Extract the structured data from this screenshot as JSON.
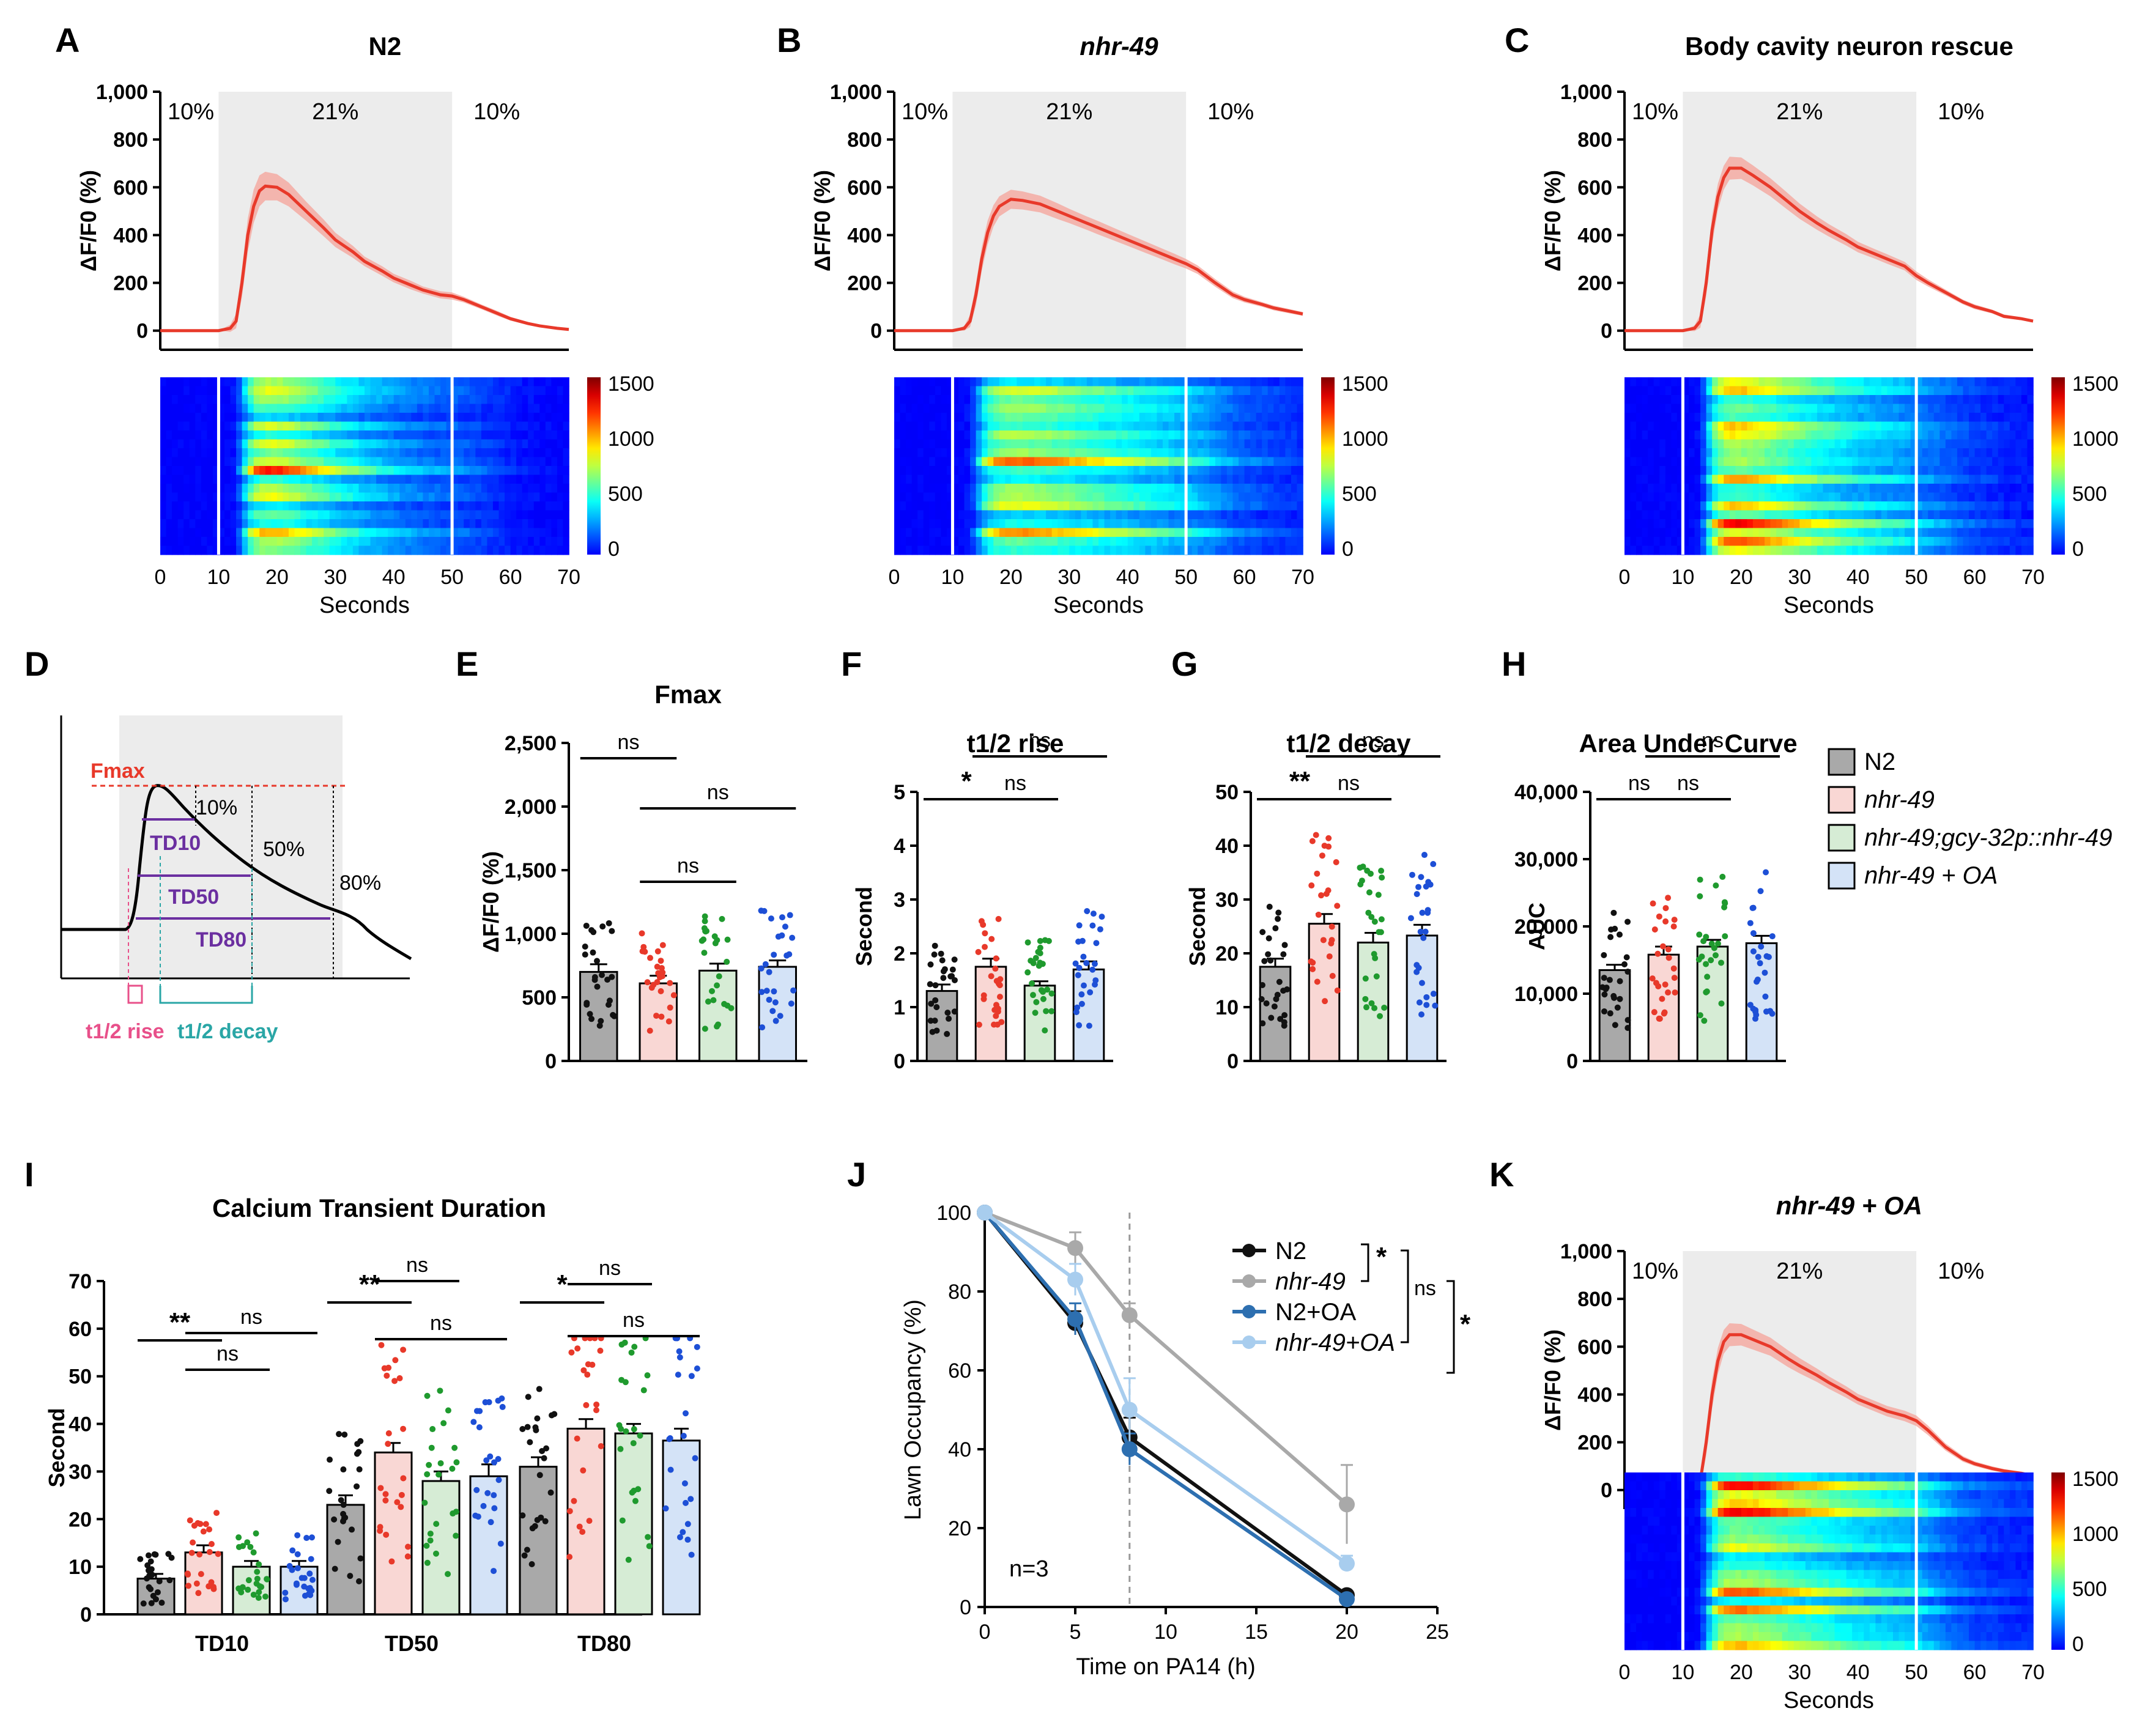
{
  "colors": {
    "n2": "#888888",
    "nhr49": "#f26b5b",
    "rescue": "#2e9e3e",
    "oa": "#2d6fd6",
    "n2_fill": "#a9a9a9",
    "nhr49_fill": "#f9d7d4",
    "rescue_fill": "#d6ecd5",
    "oa_fill": "#d4e3f7",
    "trace": "#e8392a",
    "shade": "#ececec"
  },
  "legend": {
    "items": [
      {
        "label": "N2",
        "key": "n2"
      },
      {
        "label": "nhr-49",
        "key": "nhr49"
      },
      {
        "label": "nhr-49;gcy-32p::nhr-49",
        "key": "rescue"
      },
      {
        "label": "nhr-49 + OA",
        "key": "oa"
      }
    ]
  },
  "chart_data": [
    {
      "panel": "A",
      "type": "line",
      "title": "N2",
      "title_italic": false,
      "ylabel": "ΔF/F0 (%)",
      "xlabel": "Seconds",
      "yticks": [
        "1,000",
        "800",
        "600",
        "400",
        "200",
        "0"
      ],
      "ylim": [
        -80,
        1000
      ],
      "xlim": [
        0,
        70
      ],
      "xticks": [
        "0",
        "10",
        "20",
        "30",
        "40",
        "50",
        "60",
        "70"
      ],
      "regions": {
        "before": "10%",
        "during": "21%",
        "after": "10%"
      },
      "stimulus": [
        10,
        50
      ],
      "x": [
        0,
        5,
        10,
        12,
        13,
        14,
        15,
        16,
        17,
        18,
        20,
        22,
        25,
        28,
        30,
        33,
        35,
        38,
        40,
        43,
        45,
        48,
        50,
        52,
        55,
        58,
        60,
        63,
        65,
        68,
        70
      ],
      "y": [
        0,
        0,
        0,
        10,
        40,
        200,
        400,
        520,
        585,
        605,
        600,
        570,
        500,
        430,
        380,
        330,
        290,
        250,
        220,
        190,
        170,
        150,
        145,
        130,
        100,
        70,
        50,
        30,
        20,
        10,
        5
      ],
      "err": [
        0,
        0,
        0,
        15,
        30,
        60,
        70,
        70,
        65,
        60,
        55,
        50,
        40,
        35,
        30,
        25,
        20,
        20,
        18,
        18,
        15,
        15,
        15,
        12,
        10,
        10,
        8,
        6,
        6,
        5,
        5
      ],
      "heatmap": {
        "scale": [
          "1500",
          "1000",
          "500",
          "0"
        ],
        "rows": 20,
        "peak_rows": [
          5,
          10,
          17
        ]
      }
    },
    {
      "panel": "B",
      "type": "line",
      "title": "nhr-49",
      "title_italic": true,
      "ylabel": "ΔF/F0 (%)",
      "xlabel": "Seconds",
      "yticks": [
        "1,000",
        "800",
        "600",
        "400",
        "200",
        "0"
      ],
      "ylim": [
        -80,
        1000
      ],
      "xlim": [
        0,
        70
      ],
      "xticks": [
        "0",
        "10",
        "20",
        "30",
        "40",
        "50",
        "60",
        "70"
      ],
      "regions": {
        "before": "10%",
        "during": "21%",
        "after": "10%"
      },
      "stimulus": [
        10,
        50
      ],
      "x": [
        0,
        5,
        10,
        12,
        13,
        14,
        15,
        16,
        17,
        18,
        20,
        22,
        25,
        28,
        30,
        33,
        35,
        38,
        40,
        43,
        45,
        48,
        50,
        52,
        55,
        58,
        60,
        63,
        65,
        68,
        70
      ],
      "y": [
        0,
        0,
        0,
        10,
        40,
        150,
        300,
        410,
        480,
        520,
        550,
        545,
        530,
        500,
        480,
        450,
        430,
        400,
        380,
        350,
        330,
        300,
        280,
        255,
        200,
        150,
        130,
        110,
        95,
        80,
        70
      ],
      "err": [
        0,
        0,
        0,
        10,
        25,
        45,
        50,
        50,
        45,
        42,
        40,
        38,
        35,
        33,
        30,
        28,
        28,
        26,
        25,
        24,
        23,
        22,
        20,
        18,
        16,
        14,
        12,
        10,
        10,
        9,
        8
      ],
      "heatmap": {
        "scale": [
          "1500",
          "1000",
          "500",
          "0"
        ],
        "rows": 20,
        "peak_rows": [
          6,
          9,
          14,
          17
        ]
      }
    },
    {
      "panel": "C",
      "type": "line",
      "title": "Body cavity neuron rescue",
      "title_italic": false,
      "ylabel": "ΔF/F0 (%)",
      "xlabel": "Seconds",
      "yticks": [
        "1,000",
        "800",
        "600",
        "400",
        "200",
        "0"
      ],
      "ylim": [
        -80,
        1000
      ],
      "xlim": [
        0,
        70
      ],
      "xticks": [
        "0",
        "10",
        "20",
        "30",
        "40",
        "50",
        "60",
        "70"
      ],
      "regions": {
        "before": "10%",
        "during": "21%",
        "after": "10%"
      },
      "stimulus": [
        10,
        50
      ],
      "x": [
        0,
        5,
        10,
        12,
        13,
        14,
        15,
        16,
        17,
        18,
        20,
        22,
        25,
        28,
        30,
        33,
        35,
        38,
        40,
        43,
        45,
        48,
        50,
        52,
        55,
        58,
        60,
        63,
        65,
        68,
        70
      ],
      "y": [
        0,
        0,
        0,
        10,
        40,
        200,
        420,
        560,
        640,
        680,
        680,
        650,
        600,
        540,
        500,
        450,
        420,
        380,
        350,
        320,
        300,
        270,
        230,
        200,
        160,
        120,
        100,
        80,
        60,
        50,
        40
      ],
      "err": [
        0,
        0,
        0,
        12,
        28,
        55,
        60,
        55,
        50,
        48,
        45,
        42,
        38,
        35,
        32,
        28,
        26,
        24,
        22,
        20,
        20,
        18,
        18,
        15,
        12,
        10,
        10,
        8,
        8,
        6,
        6
      ],
      "heatmap": {
        "scale": [
          "1500",
          "1000",
          "500",
          "0"
        ],
        "rows": 20,
        "peak_rows": [
          11,
          14,
          16,
          18
        ]
      }
    },
    {
      "panel": "K",
      "type": "line",
      "title": "nhr-49 + OA",
      "title_italic": true,
      "ylabel": "ΔF/F0 (%)",
      "xlabel": "Seconds",
      "yticks": [
        "1,000",
        "800",
        "600",
        "400",
        "200",
        "0"
      ],
      "ylim": [
        -80,
        1000
      ],
      "xlim": [
        0,
        70
      ],
      "xticks": [
        "0",
        "10",
        "20",
        "30",
        "40",
        "50",
        "60",
        "70"
      ],
      "regions": {
        "before": "10%",
        "during": "21%",
        "after": "10%"
      },
      "stimulus": [
        10,
        50
      ],
      "x": [
        0,
        5,
        10,
        12,
        13,
        14,
        15,
        16,
        17,
        18,
        20,
        22,
        25,
        28,
        30,
        33,
        35,
        38,
        40,
        43,
        45,
        48,
        50,
        52,
        55,
        58,
        60,
        63,
        65,
        68,
        70
      ],
      "y": [
        0,
        0,
        0,
        10,
        40,
        200,
        400,
        540,
        620,
        650,
        650,
        630,
        600,
        550,
        520,
        480,
        450,
        410,
        380,
        350,
        330,
        310,
        290,
        250,
        180,
        130,
        110,
        90,
        80,
        70,
        60
      ],
      "err": [
        0,
        0,
        0,
        12,
        28,
        55,
        60,
        55,
        50,
        48,
        45,
        42,
        38,
        35,
        32,
        28,
        26,
        24,
        22,
        22,
        22,
        22,
        22,
        20,
        15,
        12,
        10,
        9,
        8,
        7,
        6
      ],
      "heatmap": {
        "scale": [
          "1500",
          "1000",
          "500",
          "0"
        ],
        "rows": 20,
        "peak_rows": [
          1,
          4,
          8,
          13,
          15
        ]
      }
    },
    {
      "panel": "D",
      "type": "schematic",
      "title": "",
      "labels": {
        "fmax": "Fmax",
        "p10": "10%",
        "p50": "50%",
        "p80": "80%",
        "td10": "TD10",
        "td50": "TD50",
        "td80": "TD80",
        "rise": "t1/2 rise",
        "decay": "t1/2 decay"
      }
    },
    {
      "panel": "E",
      "type": "bar",
      "title": "Fmax",
      "ylabel": "ΔF/F0 (%)",
      "yticks": [
        "2,500",
        "2,000",
        "1,500",
        "1,000",
        "500",
        "0"
      ],
      "ylim": [
        0,
        2500
      ],
      "categories": [
        "N2",
        "nhr-49",
        "nhr-49;gcy-32p::nhr-49",
        "nhr-49 + OA"
      ],
      "values": [
        700,
        610,
        710,
        740
      ],
      "sem": [
        60,
        60,
        55,
        50
      ],
      "sig": [
        "ns",
        "ns",
        "ns"
      ]
    },
    {
      "panel": "F",
      "type": "bar",
      "title": "t1/2 rise",
      "ylabel": "Second",
      "yticks": [
        "5",
        "4",
        "3",
        "2",
        "1",
        "0"
      ],
      "ylim": [
        0,
        5
      ],
      "categories": [
        "N2",
        "nhr-49",
        "nhr-49;gcy-32p::nhr-49",
        "nhr-49 + OA"
      ],
      "values": [
        1.3,
        1.75,
        1.4,
        1.7
      ],
      "sem": [
        0.12,
        0.15,
        0.08,
        0.15
      ],
      "sig": [
        "*",
        "ns",
        "ns"
      ]
    },
    {
      "panel": "G",
      "type": "bar",
      "title": "t1/2 decay",
      "ylabel": "Second",
      "yticks": [
        "50",
        "40",
        "30",
        "20",
        "10",
        "0"
      ],
      "ylim": [
        0,
        50
      ],
      "categories": [
        "N2",
        "nhr-49",
        "nhr-49;gcy-32p::nhr-49",
        "nhr-49 + OA"
      ],
      "values": [
        17.5,
        25.5,
        22,
        23.3
      ],
      "sem": [
        1.5,
        1.8,
        1.8,
        2.0
      ],
      "sig": [
        "**",
        "ns",
        "ns"
      ]
    },
    {
      "panel": "H",
      "type": "bar",
      "title": "Area Under Curve",
      "ylabel": "AUC",
      "yticks": [
        "40,000",
        "30,000",
        "20,000",
        "10,000",
        "0"
      ],
      "ylim": [
        0,
        40000
      ],
      "categories": [
        "N2",
        "nhr-49",
        "nhr-49;gcy-32p::nhr-49",
        "nhr-49 + OA"
      ],
      "values": [
        13500,
        15800,
        17000,
        17500
      ],
      "sem": [
        800,
        1200,
        1000,
        1100
      ],
      "sig": [
        "ns",
        "ns",
        "ns"
      ]
    },
    {
      "panel": "I",
      "type": "bar",
      "title": "Calcium Transient Duration",
      "ylabel": "Second",
      "yticks": [
        "70",
        "60",
        "50",
        "40",
        "30",
        "20",
        "10",
        "0"
      ],
      "ylim": [
        0,
        70
      ],
      "groups": [
        "TD10",
        "TD50",
        "TD80"
      ],
      "series": [
        {
          "name": "N2",
          "values": [
            7.5,
            23,
            31
          ],
          "sem": [
            1,
            2,
            2
          ]
        },
        {
          "name": "nhr-49",
          "values": [
            13,
            34,
            39
          ],
          "sem": [
            1.5,
            2,
            2
          ]
        },
        {
          "name": "nhr-49;gcy-32p::nhr-49",
          "values": [
            10,
            28,
            38
          ],
          "sem": [
            1.2,
            2,
            2
          ]
        },
        {
          "name": "nhr-49 + OA",
          "values": [
            10,
            29,
            36.5
          ],
          "sem": [
            1.2,
            2.5,
            2.5
          ]
        }
      ],
      "sig": [
        "**",
        "ns",
        "ns",
        "**",
        "ns",
        "ns",
        "*",
        "ns",
        "ns"
      ]
    },
    {
      "panel": "J",
      "type": "line",
      "title": "",
      "ylabel": "Lawn Occupancy (%)",
      "xlabel": "Time on PA14 (h)",
      "yticks": [
        "100",
        "80",
        "60",
        "40",
        "20",
        "0"
      ],
      "xticks": [
        "0",
        "5",
        "10",
        "15",
        "20",
        "25"
      ],
      "ylim": [
        0,
        100
      ],
      "xlim": [
        0,
        25
      ],
      "x": [
        0,
        5,
        8,
        20
      ],
      "series": [
        {
          "name": "N2",
          "values": [
            100,
            72,
            43,
            3
          ],
          "sem": [
            0,
            3,
            5,
            1
          ]
        },
        {
          "name": "nhr-49",
          "values": [
            100,
            91,
            74,
            26
          ],
          "sem": [
            0,
            4,
            3,
            10
          ]
        },
        {
          "name": "N2+OA",
          "values": [
            100,
            73,
            40,
            2
          ],
          "sem": [
            0,
            4,
            4,
            1
          ]
        },
        {
          "name": "nhr-49+OA",
          "values": [
            100,
            83,
            50,
            11
          ],
          "sem": [
            0,
            4,
            8,
            2
          ]
        }
      ],
      "annotation": "n=3",
      "sig": [
        "*",
        "ns",
        "*"
      ]
    }
  ]
}
